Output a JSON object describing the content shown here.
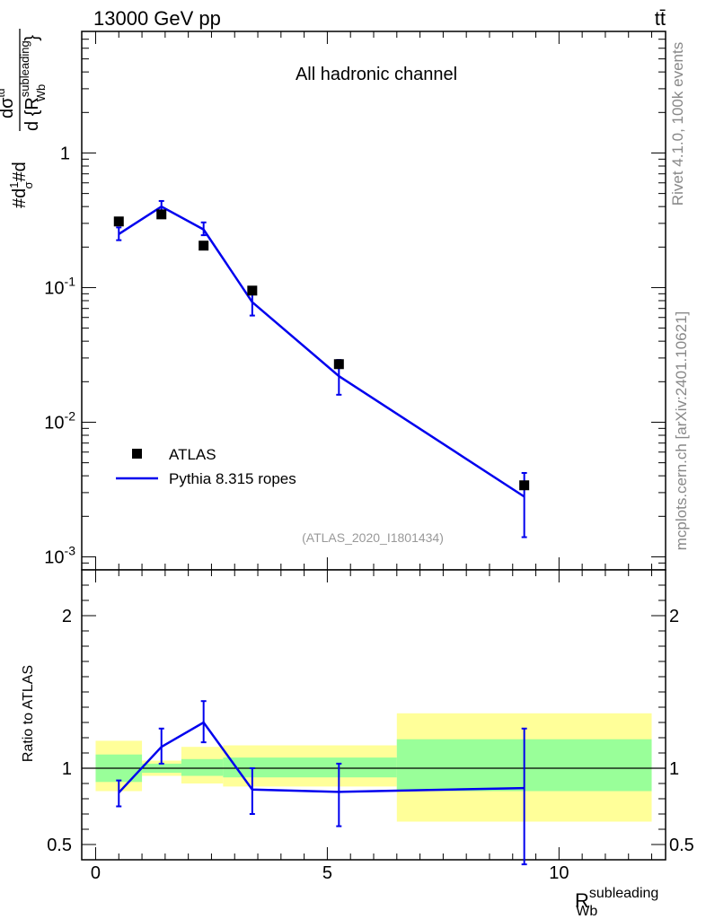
{
  "header": {
    "left": "13000 GeV pp",
    "right": "tt̄"
  },
  "side_labels": {
    "rivet": "Rivet 4.1.0,  100k events",
    "mcplots": "mcplots.cern.ch [arXiv:2401.10621]"
  },
  "chart_data": {
    "type": "line",
    "title": "All hadronic channel",
    "analysis_tag": "(ATLAS_2020_I1801434)",
    "xlabel": "R_Wb^subleading",
    "xlabel_main": "R",
    "xlabel_sup": "subleading",
    "xlabel_sub": "Wb",
    "ylabel_main": "#d 1/σ #d dσ^{td} / d{R_Wb^subleading}",
    "xlim": [
      -0.3,
      12.3
    ],
    "x_ticks": [
      "0",
      "5",
      "10"
    ],
    "main_panel": {
      "yscale": "log",
      "ylim": [
        0.0008,
        8
      ],
      "y_ticks": [
        "10^-3",
        "10^-2",
        "10^-1",
        "1"
      ],
      "series": [
        {
          "name": "ATLAS",
          "style": "markers",
          "color": "#000000",
          "x": [
            0.5,
            1.42,
            2.33,
            3.38,
            5.25,
            9.25
          ],
          "y": [
            0.31,
            0.35,
            0.205,
            0.095,
            0.027,
            0.0034
          ]
        },
        {
          "name": "Pythia 8.315 ropes",
          "style": "line",
          "color": "#0000ee",
          "x": [
            0.5,
            1.42,
            2.33,
            3.38,
            5.25,
            9.25
          ],
          "y": [
            0.25,
            0.4,
            0.27,
            0.078,
            0.022,
            0.0028
          ],
          "err_low": [
            0.225,
            0.36,
            0.245,
            0.062,
            0.016,
            0.0014
          ],
          "err_high": [
            0.28,
            0.44,
            0.305,
            0.095,
            0.029,
            0.0042
          ]
        }
      ],
      "legend": [
        "ATLAS",
        "Pythia 8.315 ropes"
      ],
      "legend_position": "bottom-left"
    },
    "ratio_panel": {
      "ylabel": "Ratio to ATLAS",
      "ylim": [
        0.4,
        2.3
      ],
      "y_ticks": [
        "0.5",
        "1",
        "2"
      ],
      "bands": [
        {
          "x0": 0.0,
          "x1": 1.0,
          "yellow": [
            0.85,
            1.18
          ],
          "green": [
            0.91,
            1.09
          ]
        },
        {
          "x0": 1.0,
          "x1": 1.85,
          "yellow": [
            0.95,
            1.05
          ],
          "green": [
            0.97,
            1.03
          ]
        },
        {
          "x0": 1.85,
          "x1": 2.75,
          "yellow": [
            0.9,
            1.14
          ],
          "green": [
            0.95,
            1.06
          ]
        },
        {
          "x0": 2.75,
          "x1": 6.5,
          "yellow": [
            0.88,
            1.15
          ],
          "green": [
            0.94,
            1.07
          ]
        },
        {
          "x0": 6.5,
          "x1": 12.0,
          "yellow": [
            0.65,
            1.36
          ],
          "green": [
            0.85,
            1.19
          ]
        }
      ],
      "series": {
        "name": "Pythia 8.315 ropes / ATLAS",
        "color": "#0000ee",
        "x": [
          0.5,
          1.42,
          2.33,
          3.38,
          5.25,
          9.25
        ],
        "y": [
          0.84,
          1.14,
          1.3,
          0.86,
          0.845,
          0.87
        ],
        "err_low": [
          0.75,
          1.03,
          1.17,
          0.7,
          0.62,
          0.37
        ],
        "err_high": [
          0.92,
          1.26,
          1.44,
          1.0,
          1.03,
          1.26
        ]
      }
    }
  }
}
